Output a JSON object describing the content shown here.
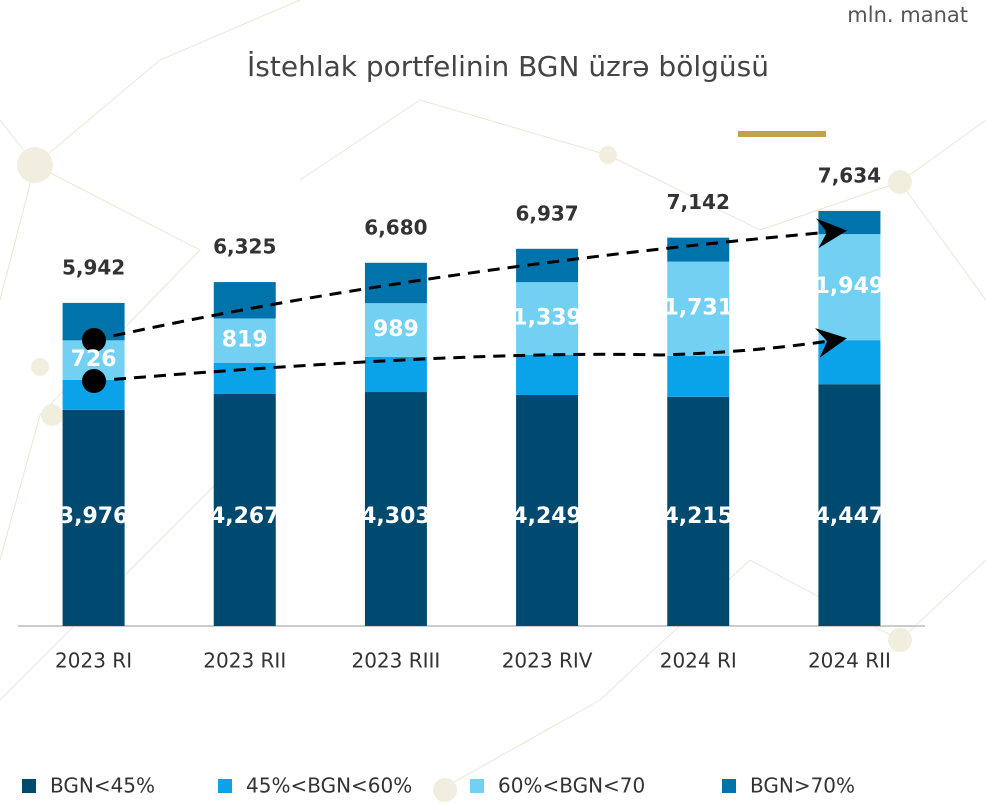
{
  "chart_data": {
    "type": "stacked_bar",
    "title": "İstehlak portfelinin BGN üzrə bölgüsü",
    "unit": "mln. manat",
    "categories": [
      "2023 RI",
      "2023 RII",
      "2023 RIII",
      "2023 RIV",
      "2024 RI",
      "2024 RII"
    ],
    "series": [
      {
        "name": "BGN<45%",
        "color": "#004a70",
        "values": [
          3976,
          4267,
          4303,
          4249,
          4215,
          4447
        ],
        "value_labels": [
          "3,976",
          "4,267",
          "4,303",
          "4,249",
          "4,215",
          "4,447"
        ]
      },
      {
        "name": "45%<BGN<60%",
        "color": "#0aa2e8",
        "values": [
          552,
          570,
          645,
          735,
          755,
          810
        ]
      },
      {
        "name": "60%<BGN<70",
        "color": "#72d0f2",
        "values": [
          726,
          819,
          989,
          1339,
          1731,
          1949
        ],
        "value_labels": [
          "726",
          "819",
          "989",
          "1,339",
          "1,731",
          "1,949"
        ]
      },
      {
        "name": "BGN>70%",
        "color": "#0073aa",
        "values": [
          688,
          669,
          743,
          614,
          441,
          428
        ]
      }
    ],
    "totals": [
      5942,
      6325,
      6680,
      6937,
      7142,
      7634
    ],
    "total_labels": [
      "5,942",
      "6,325",
      "6,680",
      "6,937",
      "7,142",
      "7,634"
    ],
    "ylim": [
      0,
      8000
    ]
  }
}
